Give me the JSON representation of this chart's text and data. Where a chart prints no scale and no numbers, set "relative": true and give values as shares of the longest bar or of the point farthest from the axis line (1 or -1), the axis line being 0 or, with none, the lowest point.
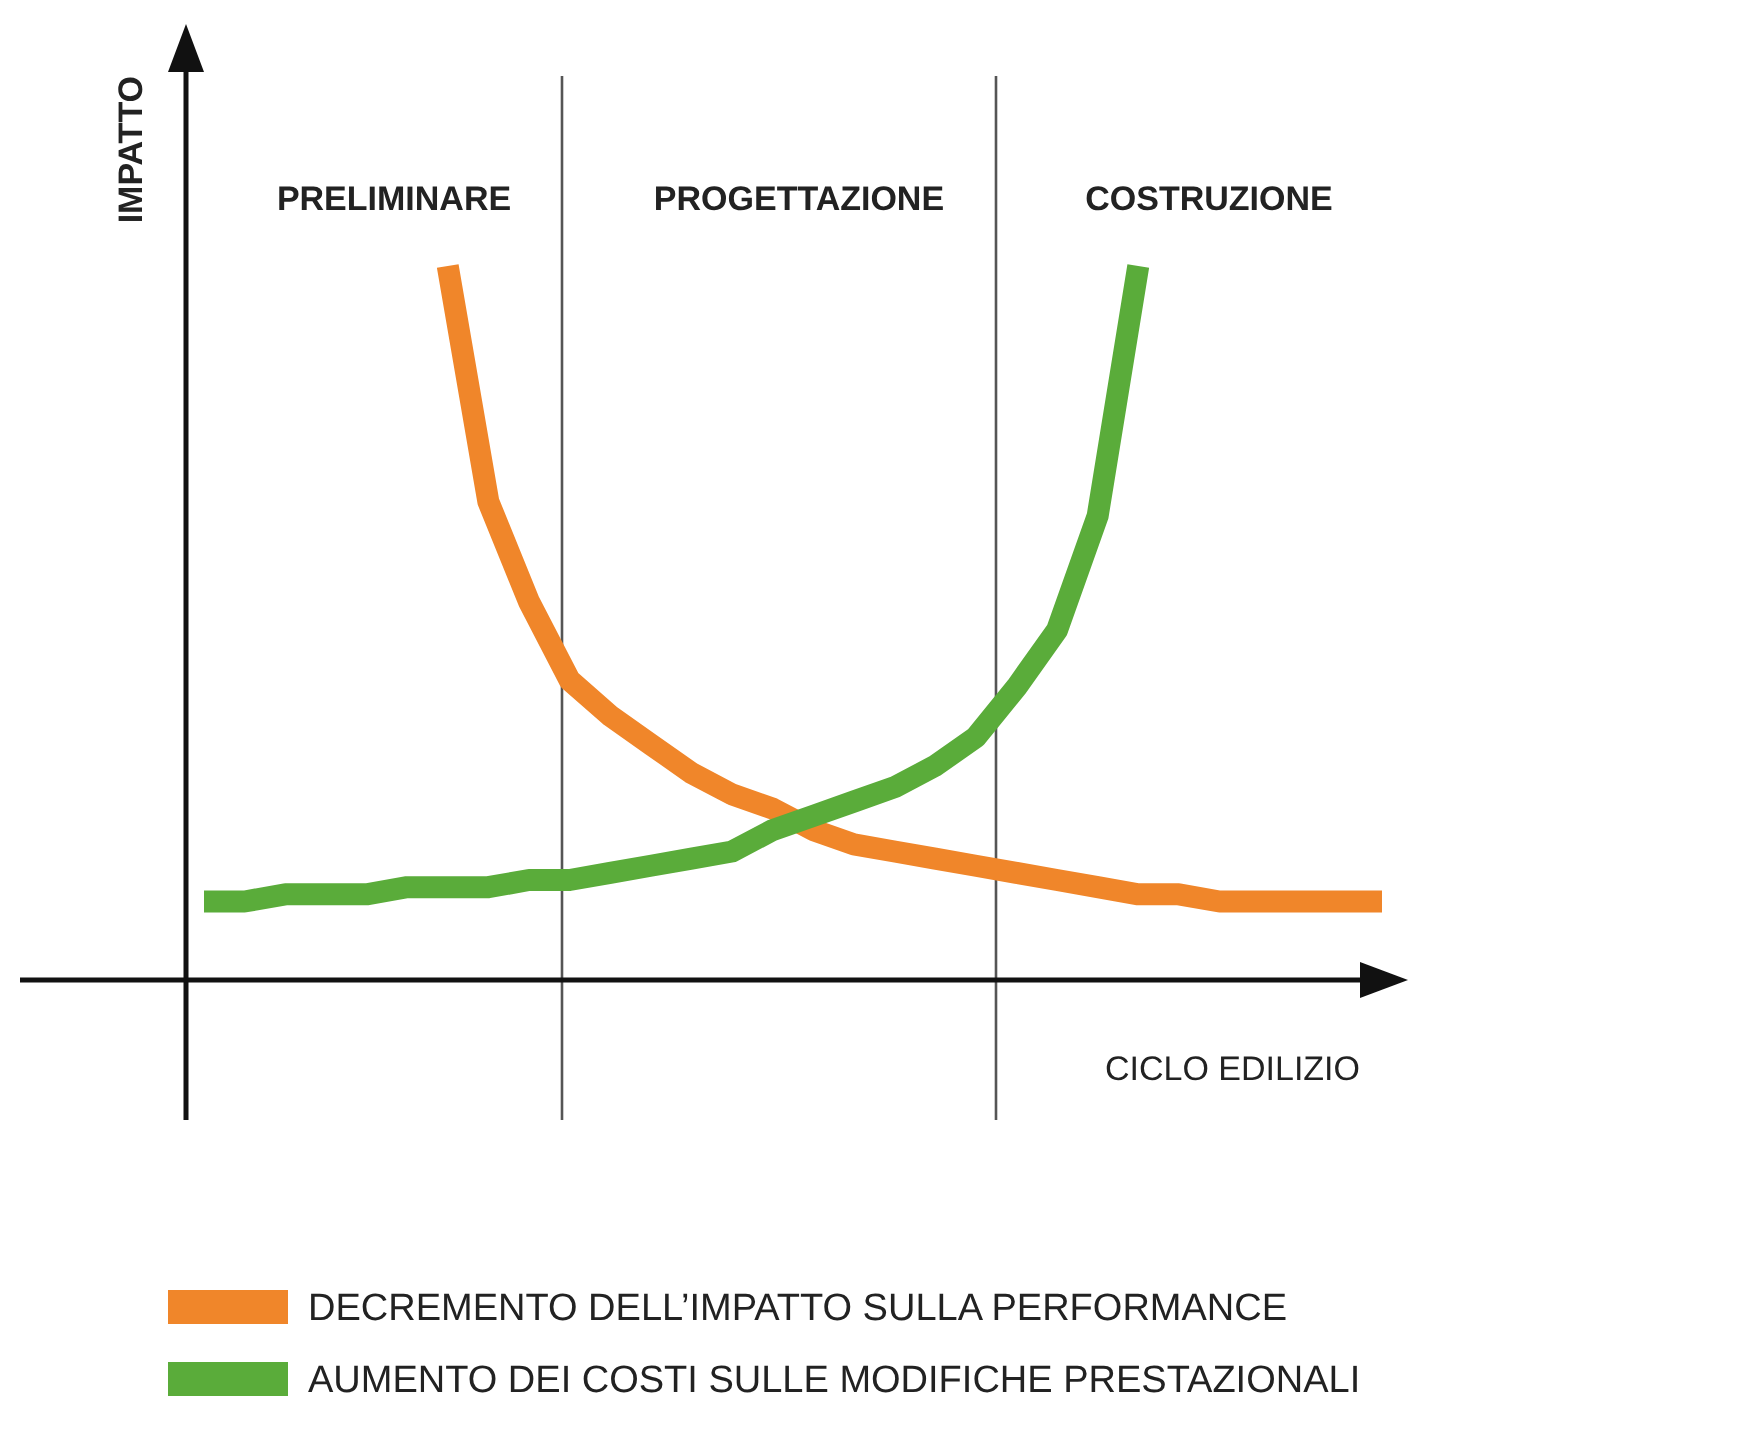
{
  "chart_data": {
    "type": "line",
    "relative": true,
    "xlabel": "CICLO EDILIZIO",
    "ylabel": "IMPATTO",
    "legend": "bottom",
    "categories": [
      null,
      null,
      null,
      null,
      null,
      null,
      null,
      null,
      null,
      null,
      null,
      null,
      null,
      null,
      null,
      null,
      null,
      null,
      null,
      null,
      null,
      null,
      null,
      null,
      null,
      null,
      null,
      null,
      null,
      null
    ],
    "annotations": [
      "PRELIMINARE",
      "PROGETTAZIONE",
      "COSTRUZIONE"
    ],
    "series": [
      {
        "name": "DECREMENTO DELL’IMPATTO SULLA PERFORMANCE",
        "color": "#f0862a",
        "values": [
          null,
          null,
          null,
          null,
          null,
          null,
          1.0,
          0.67,
          0.53,
          0.42,
          0.37,
          0.33,
          0.29,
          0.26,
          0.24,
          0.21,
          0.19,
          0.18,
          0.17,
          0.16,
          0.15,
          0.14,
          0.13,
          0.12,
          0.12,
          0.11,
          0.11,
          0.11,
          0.11,
          0.11
        ]
      },
      {
        "name": "AUMENTO DEI COSTI SULLE MODIFICHE PRESTAZIONALI",
        "color": "#5aac3a",
        "values": [
          0.11,
          0.11,
          0.12,
          0.12,
          0.12,
          0.13,
          0.13,
          0.13,
          0.14,
          0.14,
          0.15,
          0.16,
          0.17,
          0.18,
          0.21,
          0.23,
          0.25,
          0.27,
          0.3,
          0.34,
          0.41,
          0.49,
          0.65,
          1.0,
          null,
          null,
          null,
          null,
          null,
          null
        ]
      }
    ]
  }
}
